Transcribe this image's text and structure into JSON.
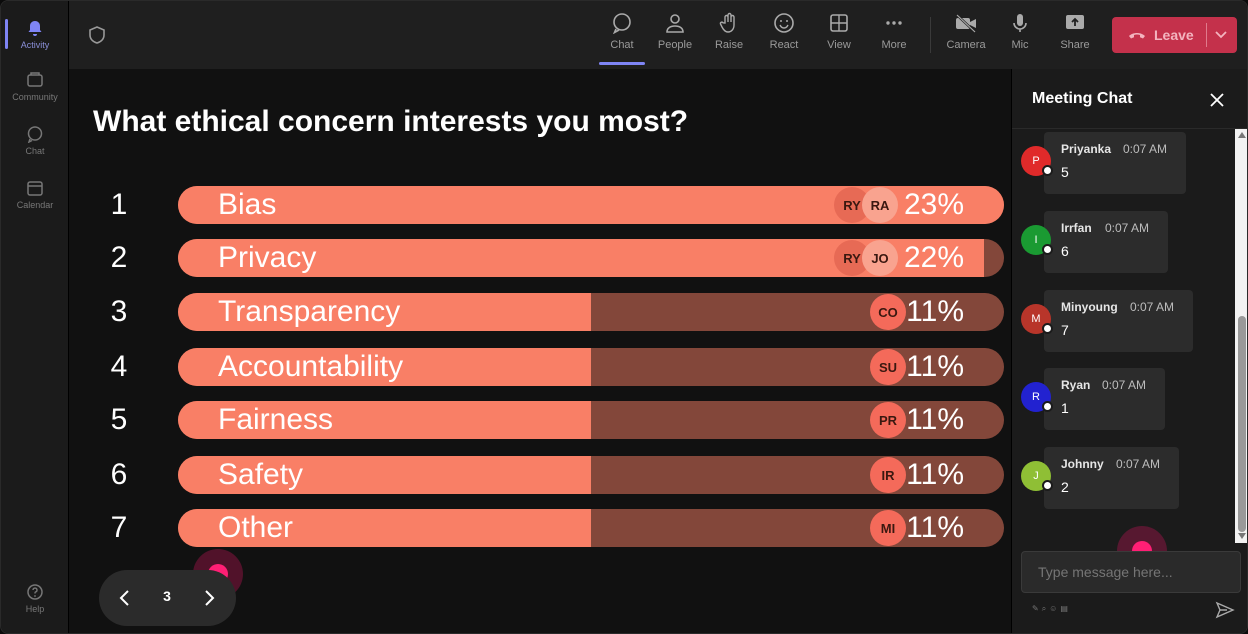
{
  "rail": {
    "items": [
      {
        "label": "Activity",
        "icon": "bell-icon"
      },
      {
        "label": "Community",
        "icon": "community-icon"
      },
      {
        "label": "Chat",
        "icon": "chat-icon"
      },
      {
        "label": "Calendar",
        "icon": "calendar-icon"
      },
      {
        "label": "Help",
        "icon": "help-icon"
      }
    ]
  },
  "toolbar": {
    "chat": "Chat",
    "people": "People",
    "raise": "Raise",
    "react": "React",
    "view": "View",
    "more": "More",
    "camera": "Camera",
    "mic": "Mic",
    "share": "Share",
    "leave": "Leave"
  },
  "poll": {
    "question": "What ethical concern interests you most?",
    "options": [
      {
        "num": "1",
        "label": "Bias",
        "percent": "23%",
        "fill": 1.0,
        "avatars": [
          "RY",
          "RA"
        ]
      },
      {
        "num": "2",
        "label": "Privacy",
        "percent": "22%",
        "fill": 0.976,
        "avatars": [
          "RY",
          "JO"
        ]
      },
      {
        "num": "3",
        "label": "Transparency",
        "percent": "11%",
        "fill": 0.5,
        "avatars": [
          "CO"
        ]
      },
      {
        "num": "4",
        "label": "Accountability",
        "percent": "11%",
        "fill": 0.5,
        "avatars": [
          "SU"
        ]
      },
      {
        "num": "5",
        "label": "Fairness",
        "percent": "11%",
        "fill": 0.5,
        "avatars": [
          "PR"
        ]
      },
      {
        "num": "6",
        "label": "Safety",
        "percent": "11%",
        "fill": 0.5,
        "avatars": [
          "IR"
        ]
      },
      {
        "num": "7",
        "label": "Other",
        "percent": "11%",
        "fill": 0.5,
        "avatars": [
          "MI"
        ]
      }
    ]
  },
  "pager": {
    "page": "3"
  },
  "chat": {
    "title": "Meeting Chat",
    "messages": [
      {
        "initial": "P",
        "name": "Priyanka",
        "time": "0:07 AM",
        "text": "5",
        "color": "#e02a2a"
      },
      {
        "initial": "I",
        "name": "Irrfan",
        "time": "0:07 AM",
        "text": "6",
        "color": "#1a9a32"
      },
      {
        "initial": "M",
        "name": "Minyoung",
        "time": "0:07 AM",
        "text": "7",
        "color": "#b8352a"
      },
      {
        "initial": "R",
        "name": "Ryan",
        "time": "0:07 AM",
        "text": "1",
        "color": "#2222d0"
      },
      {
        "initial": "J",
        "name": "Johnny",
        "time": "0:07 AM",
        "text": "2",
        "color": "#8fbf35"
      }
    ],
    "input_placeholder": "Type message here..."
  },
  "colors": {
    "fill": "#f97f66",
    "track": "#83473a",
    "leave": "#c4314b",
    "accent": "#7f85f5"
  }
}
